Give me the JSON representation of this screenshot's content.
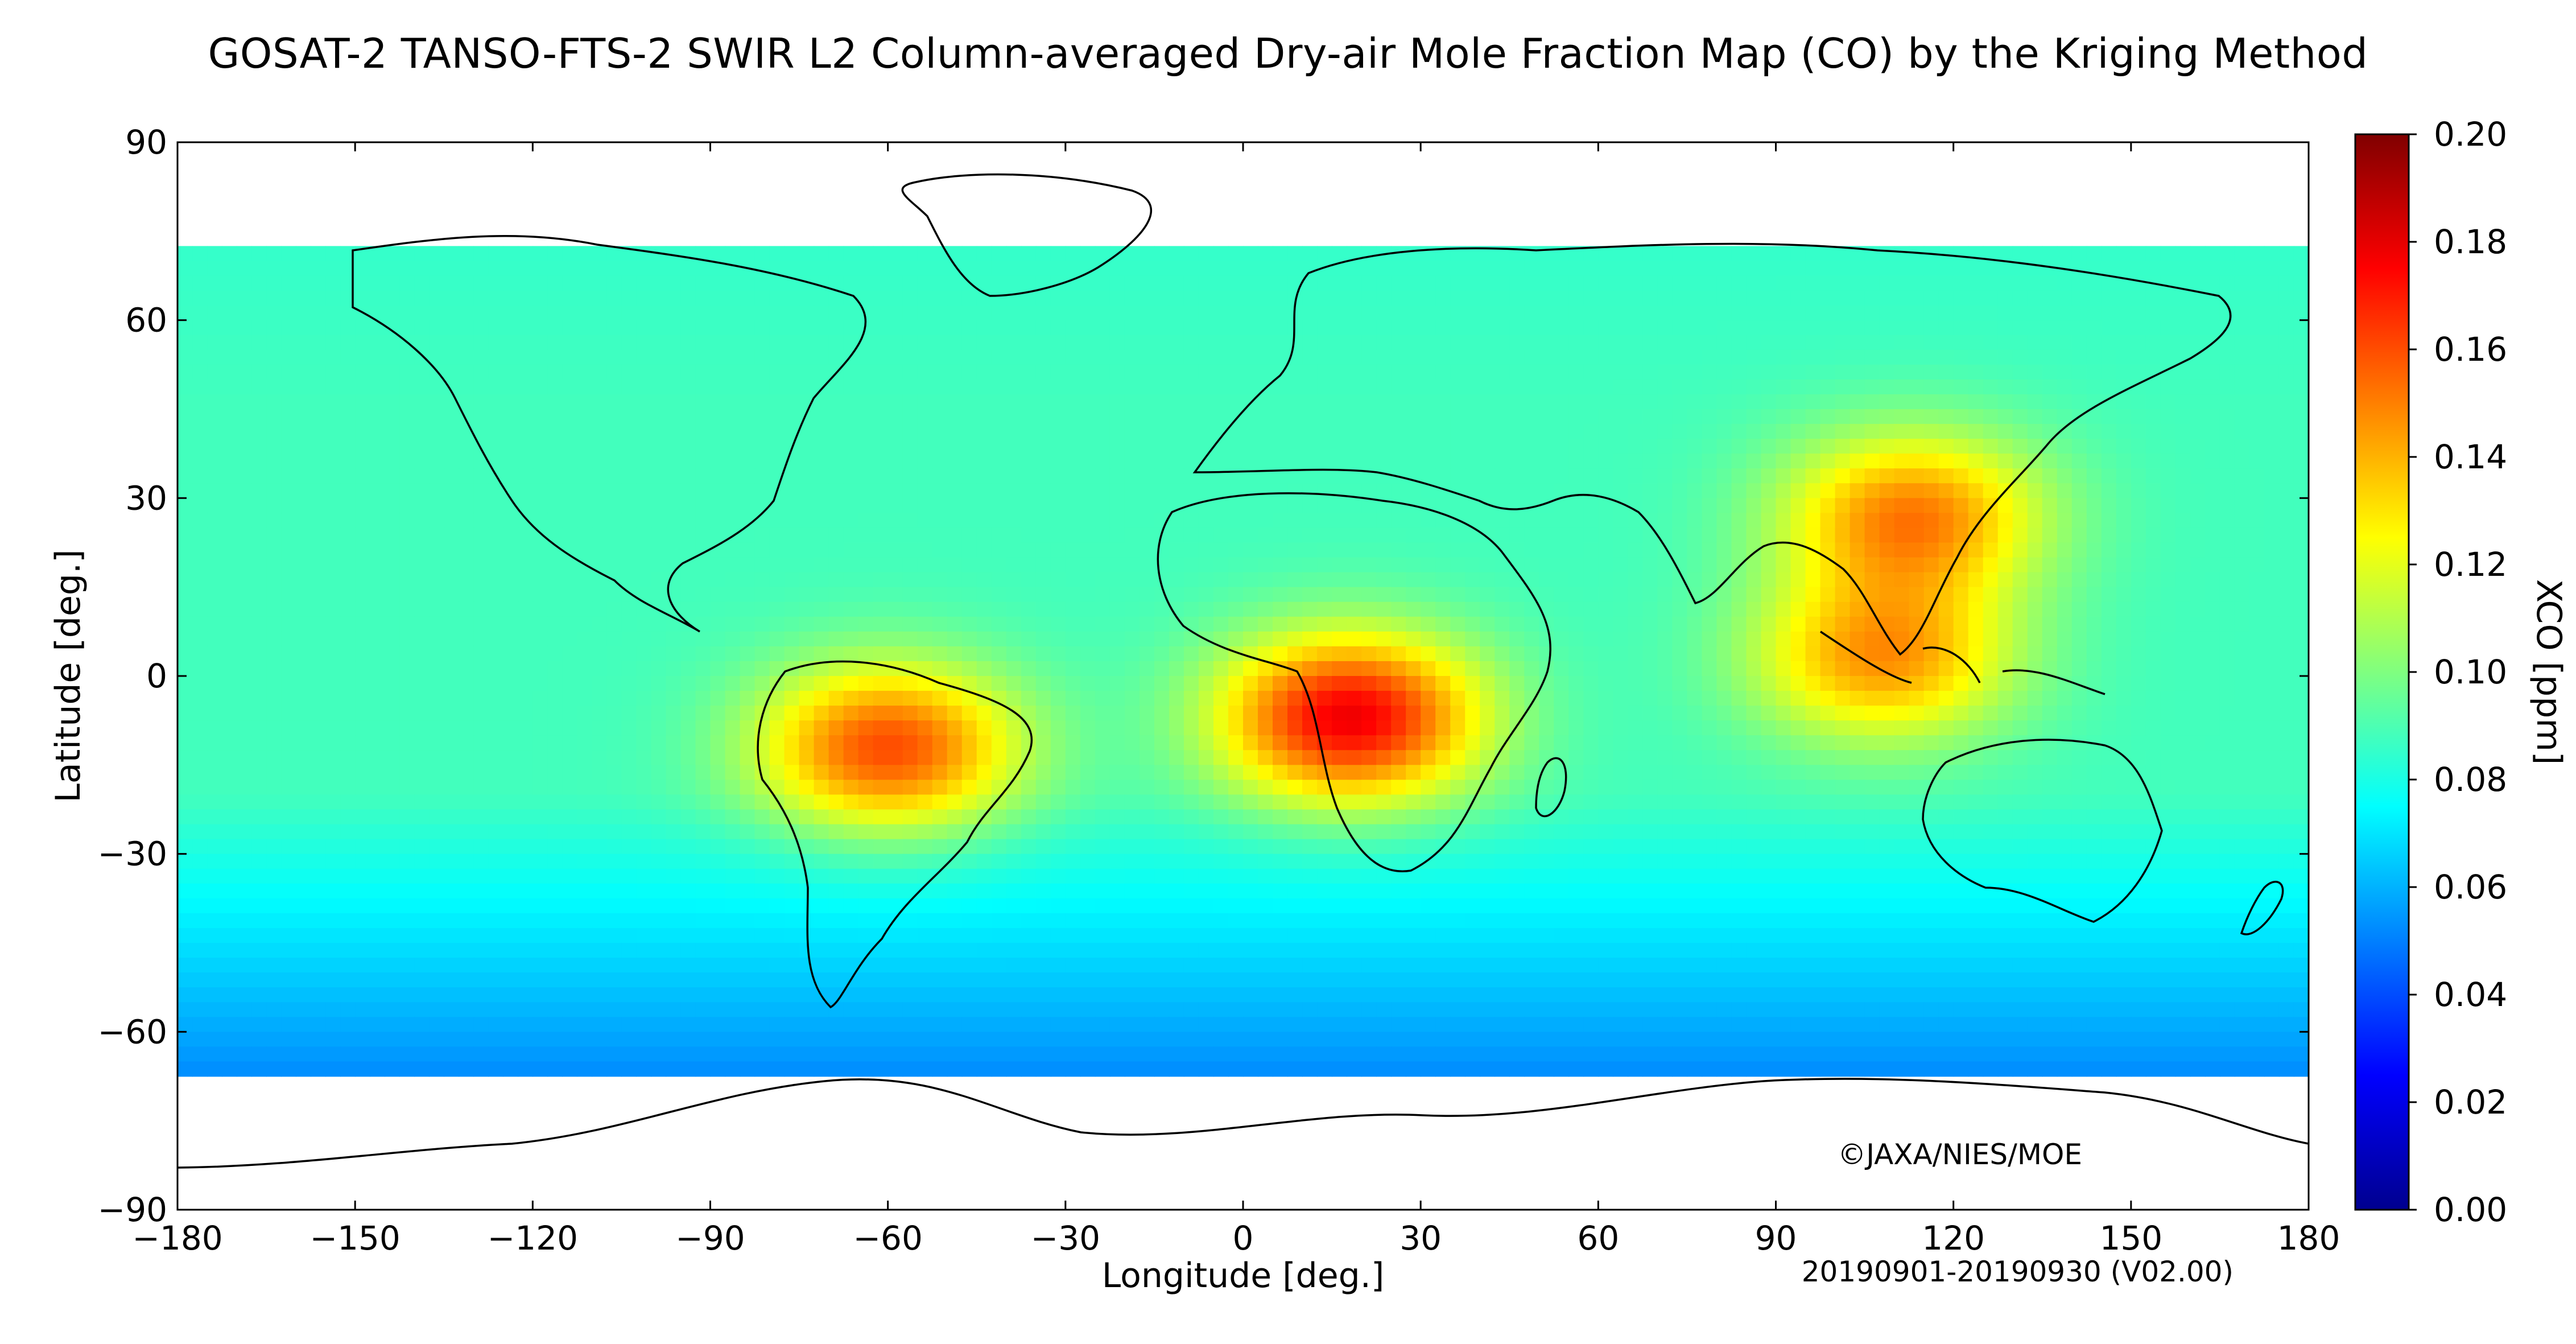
{
  "title": "GOSAT-2 TANSO-FTS-2 SWIR L2 Column-averaged Dry-air Mole Fraction Map (CO) by the Kriging Method",
  "map": {
    "xlabel": "Longitude [deg.]",
    "ylabel": "Latitude [deg.]",
    "x_range": [
      -180,
      180
    ],
    "y_range": [
      -90,
      90
    ],
    "x_ticks": [
      {
        "value": -180,
        "label": "−180"
      },
      {
        "value": -150,
        "label": "−150"
      },
      {
        "value": -120,
        "label": "−120"
      },
      {
        "value": -90,
        "label": "−90"
      },
      {
        "value": -60,
        "label": "−60"
      },
      {
        "value": -30,
        "label": "−30"
      },
      {
        "value": 0,
        "label": "0"
      },
      {
        "value": 30,
        "label": "30"
      },
      {
        "value": 60,
        "label": "60"
      },
      {
        "value": 90,
        "label": "90"
      },
      {
        "value": 120,
        "label": "120"
      },
      {
        "value": 150,
        "label": "150"
      },
      {
        "value": 180,
        "label": "180"
      }
    ],
    "y_ticks": [
      {
        "value": 90,
        "label": "90"
      },
      {
        "value": 60,
        "label": "60"
      },
      {
        "value": 30,
        "label": "30"
      },
      {
        "value": 0,
        "label": "0"
      },
      {
        "value": -30,
        "label": "−30"
      },
      {
        "value": -60,
        "label": "−60"
      },
      {
        "value": -90,
        "label": "−90"
      }
    ],
    "copyright": "©JAXA/NIES/MOE",
    "period": "20190901-20190930 (V02.00)"
  },
  "colorbar": {
    "label": "XCO [ppm]",
    "min": 0.0,
    "max": 0.2,
    "ticks": [
      "0.20",
      "0.18",
      "0.16",
      "0.14",
      "0.12",
      "0.10",
      "0.08",
      "0.06",
      "0.04",
      "0.02",
      "0.00"
    ],
    "colormap": "jet"
  },
  "field": {
    "grid_cell_deg": 2.5,
    "background_ppm": 0.088,
    "hotspots": [
      {
        "name": "South America",
        "lon": -60,
        "lat": -12,
        "peak_ppm": 0.16
      },
      {
        "name": "Central Africa",
        "lon": 18,
        "lat": -7,
        "peak_ppm": 0.178
      },
      {
        "name": "East Asia",
        "lon": 113,
        "lat": 27,
        "peak_ppm": 0.15
      },
      {
        "name": "Southeast Asia",
        "lon": 108,
        "lat": 3,
        "peak_ppm": 0.145
      }
    ],
    "coverage_lat": [
      -67.5,
      72.5
    ]
  }
}
